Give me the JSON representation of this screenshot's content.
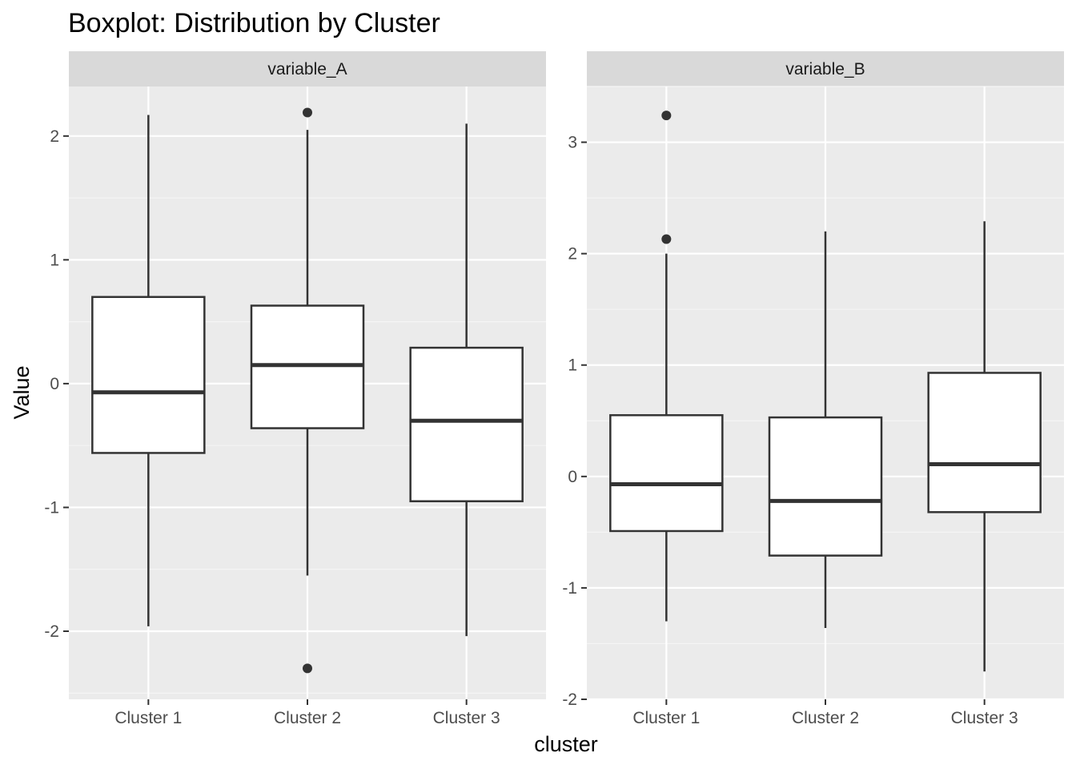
{
  "chart_data": {
    "type": "boxplot",
    "title": "Boxplot: Distribution by Cluster",
    "xlabel": "cluster",
    "ylabel": "Value",
    "categories": [
      "Cluster 1",
      "Cluster 2",
      "Cluster 3"
    ],
    "grid": true,
    "legend": "none",
    "facets": [
      {
        "name": "variable_A",
        "ylim": [
          -2.55,
          2.4
        ],
        "yticks": [
          {
            "value": -2,
            "label": "-2"
          },
          {
            "value": -1,
            "label": "-1"
          },
          {
            "value": 0,
            "label": "0"
          },
          {
            "value": 1,
            "label": "1"
          },
          {
            "value": 2,
            "label": "2"
          }
        ],
        "boxes": [
          {
            "category": "Cluster 1",
            "whisker_low": -1.96,
            "q1": -0.56,
            "median": -0.07,
            "q3": 0.7,
            "whisker_high": 2.17,
            "outliers": []
          },
          {
            "category": "Cluster 2",
            "whisker_low": -1.55,
            "q1": -0.36,
            "median": 0.15,
            "q3": 0.63,
            "whisker_high": 2.05,
            "outliers": [
              2.19,
              -2.3
            ]
          },
          {
            "category": "Cluster 3",
            "whisker_low": -2.04,
            "q1": -0.95,
            "median": -0.3,
            "q3": 0.29,
            "whisker_high": 2.1,
            "outliers": []
          }
        ]
      },
      {
        "name": "variable_B",
        "ylim": [
          -2.0,
          3.5
        ],
        "yticks": [
          {
            "value": -2,
            "label": "-2"
          },
          {
            "value": -1,
            "label": "-1"
          },
          {
            "value": 0,
            "label": "0"
          },
          {
            "value": 1,
            "label": "1"
          },
          {
            "value": 2,
            "label": "2"
          },
          {
            "value": 3,
            "label": "3"
          }
        ],
        "boxes": [
          {
            "category": "Cluster 1",
            "whisker_low": -1.3,
            "q1": -0.49,
            "median": -0.07,
            "q3": 0.55,
            "whisker_high": 2.0,
            "outliers": [
              3.24,
              2.13
            ]
          },
          {
            "category": "Cluster 2",
            "whisker_low": -1.36,
            "q1": -0.71,
            "median": -0.22,
            "q3": 0.53,
            "whisker_high": 2.2,
            "outliers": []
          },
          {
            "category": "Cluster 3",
            "whisker_low": -1.75,
            "q1": -0.32,
            "median": 0.11,
            "q3": 0.93,
            "whisker_high": 2.29,
            "outliers": []
          }
        ]
      }
    ],
    "colors": {
      "panel_background": "#ebebeb",
      "strip_background": "#d9d9d9",
      "grid_major": "#ffffff",
      "grid_minor": "#f5f5f5",
      "box_fill": "#ffffff",
      "box_line": "#333333"
    }
  }
}
